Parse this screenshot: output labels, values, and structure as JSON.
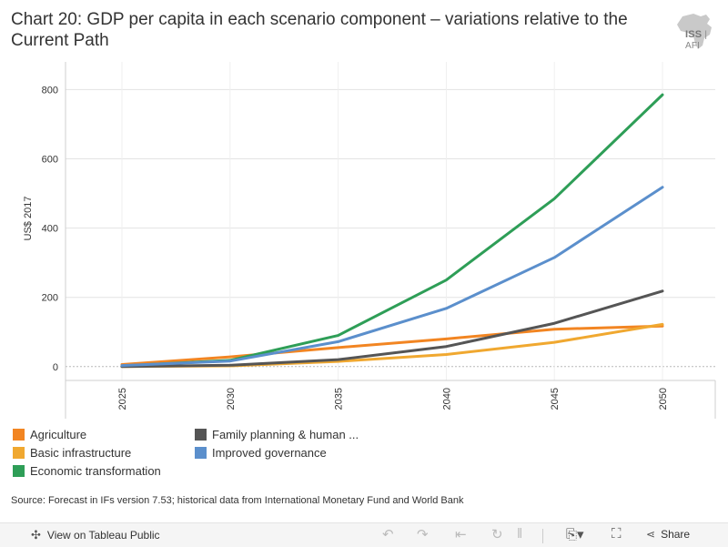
{
  "title": "Chart 20: GDP per capita in each scenario component – variations relative to the Current Path",
  "logo": {
    "text_main": "ISS",
    "text_sub": "AFI"
  },
  "chart_data": {
    "type": "line",
    "title": "Chart 20: GDP per capita in each scenario component – variations relative to the Current Path",
    "xlabel": "",
    "ylabel": "US$ 2017",
    "x": [
      2025,
      2030,
      2035,
      2040,
      2045,
      2050
    ],
    "xticks": [
      "2025",
      "2030",
      "2035",
      "2040",
      "2045",
      "2050"
    ],
    "yticks": [
      0,
      200,
      400,
      600,
      800
    ],
    "ylim": [
      -40,
      880
    ],
    "grid": true,
    "series": [
      {
        "name": "Agriculture",
        "color": "#f28522",
        "values": [
          6,
          28,
          55,
          80,
          108,
          117
        ]
      },
      {
        "name": "Basic infrastructure",
        "color": "#f0a830",
        "values": [
          0,
          2,
          15,
          35,
          70,
          122
        ]
      },
      {
        "name": "Economic transformation",
        "color": "#2e9e57",
        "values": [
          2,
          18,
          90,
          250,
          485,
          785
        ]
      },
      {
        "name": "Family planning & human ...",
        "color": "#555555",
        "values": [
          0,
          4,
          20,
          58,
          125,
          218
        ]
      },
      {
        "name": "Improved governance",
        "color": "#5b8fcc",
        "values": [
          3,
          16,
          72,
          168,
          315,
          518
        ]
      }
    ]
  },
  "legend": [
    {
      "label": "Agriculture",
      "color": "#f28522"
    },
    {
      "label": "Basic infrastructure",
      "color": "#f0a830"
    },
    {
      "label": "Economic transformation",
      "color": "#2e9e57"
    },
    {
      "label": "Family planning & human ...",
      "color": "#555555"
    },
    {
      "label": "Improved governance",
      "color": "#5b8fcc"
    }
  ],
  "source": "Source: Forecast in IFs version 7.53; historical data from International Monetary Fund and World Bank",
  "toolbar": {
    "view_label": "View on Tableau Public",
    "share_label": "Share"
  }
}
